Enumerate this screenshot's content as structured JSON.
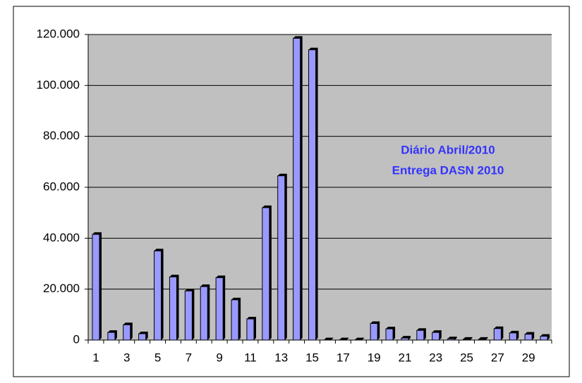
{
  "chart_data": {
    "type": "bar",
    "annotation": [
      "Diário Abril/2010",
      "Entrega DASN 2010"
    ],
    "categories": [
      "1",
      null,
      "3",
      null,
      "5",
      null,
      "7",
      null,
      "9",
      null,
      "11",
      null,
      "13",
      null,
      "15",
      null,
      "17",
      null,
      "19",
      null,
      "21",
      null,
      "23",
      null,
      "25",
      null,
      "27",
      null,
      "29",
      null
    ],
    "values": [
      41500,
      3000,
      6000,
      2500,
      35000,
      24800,
      19300,
      21000,
      24500,
      15800,
      8300,
      52000,
      64500,
      118500,
      114000,
      100,
      100,
      100,
      6500,
      4400,
      800,
      3800,
      3000,
      500,
      300,
      300,
      4500,
      2800,
      2300,
      1500
    ],
    "color": "#9999ff",
    "ylim": [
      0,
      120000
    ],
    "yticks": [
      0,
      {
        "value": 20000,
        "label": "20.000"
      },
      {
        "value": 40000,
        "label": "40.000"
      },
      {
        "value": 60000,
        "label": "60.000"
      },
      {
        "value": 80000,
        "label": "80.000"
      },
      {
        "value": 100000,
        "label": "100.000"
      },
      {
        "value": 120000,
        "label": "120.000"
      }
    ],
    "grid": true
  }
}
